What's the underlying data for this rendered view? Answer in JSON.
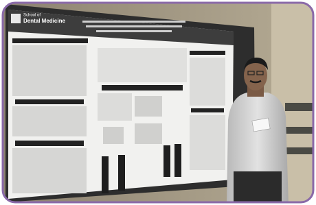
{
  "logo": {
    "line1": "School of",
    "line2": "Dental Medicine"
  }
}
